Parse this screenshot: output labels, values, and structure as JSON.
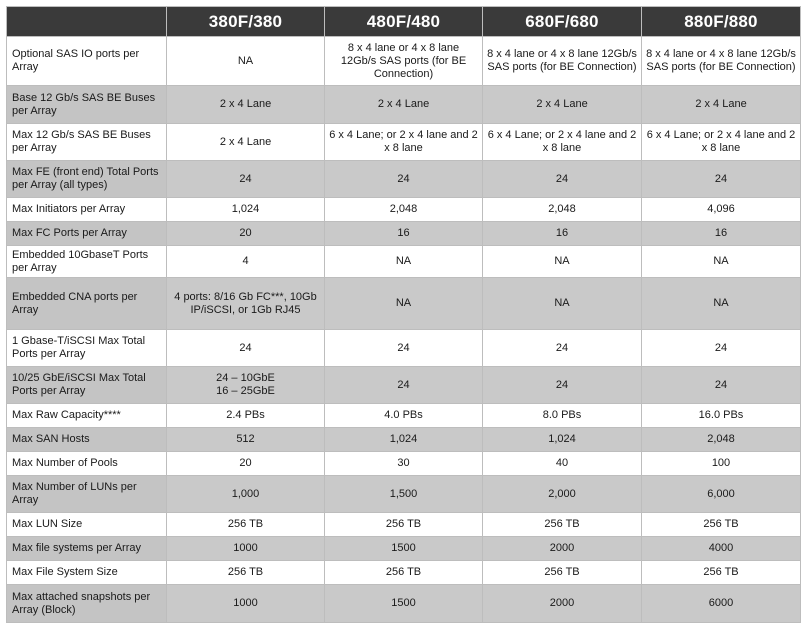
{
  "header": {
    "models": [
      "380F/380",
      "480F/480",
      "680F/680",
      "880F/880"
    ]
  },
  "rows": [
    {
      "label": "Optional SAS IO ports per Array",
      "values": [
        "NA",
        "8 x 4 lane or 4 x 8 lane 12Gb/s SAS ports (for BE Connection)",
        "8 x 4 lane or 4 x 8 lane 12Gb/s SAS ports (for BE Connection)",
        "8 x 4 lane or 4 x 8 lane 12Gb/s SAS ports (for BE Connection)"
      ]
    },
    {
      "label": "Base 12 Gb/s SAS BE Buses per Array",
      "values": [
        "2 x 4 Lane",
        "2 x 4 Lane",
        "2 x 4 Lane",
        "2 x 4 Lane"
      ]
    },
    {
      "label": "Max 12 Gb/s SAS BE Buses per Array",
      "values": [
        "2 x 4 Lane",
        "6 x 4 Lane; or 2 x 4 lane and 2 x 8 lane",
        "6 x 4 Lane; or 2 x 4 lane and 2 x 8 lane",
        "6 x 4 Lane; or 2 x 4 lane and 2 x 8 lane"
      ]
    },
    {
      "label": "Max FE (front end) Total Ports per Array (all types)",
      "values": [
        "24",
        "24",
        "24",
        "24"
      ]
    },
    {
      "label": "Max Initiators per Array",
      "values": [
        "1,024",
        "2,048",
        "2,048",
        "4,096"
      ]
    },
    {
      "label": "Max FC Ports per Array",
      "values": [
        "20",
        "16",
        "16",
        "16"
      ]
    },
    {
      "label": "Embedded 10GbaseT Ports per Array",
      "values": [
        "4",
        "NA",
        "NA",
        "NA"
      ]
    },
    {
      "label": "Embedded CNA ports per Array",
      "values": [
        "4 ports: 8/16 Gb FC***, 10Gb IP/iSCSI, or 1Gb RJ45",
        "NA",
        "NA",
        "NA"
      ]
    },
    {
      "label": "1 Gbase-T/iSCSI Max Total Ports per Array",
      "values": [
        "24",
        "24",
        "24",
        "24"
      ]
    },
    {
      "label": "10/25 GbE/iSCSI Max Total Ports per Array",
      "values": [
        "24 – 10GbE\n16 – 25GbE",
        "24",
        "24",
        "24"
      ]
    },
    {
      "label": "Max Raw Capacity****",
      "values": [
        "2.4 PBs",
        "4.0 PBs",
        "8.0 PBs",
        "16.0 PBs"
      ]
    },
    {
      "label": "Max SAN Hosts",
      "values": [
        "512",
        "1,024",
        "1,024",
        "2,048"
      ]
    },
    {
      "label": "Max Number of Pools",
      "values": [
        "20",
        "30",
        "40",
        "100"
      ]
    },
    {
      "label": "Max Number of LUNs per Array",
      "values": [
        "1,000",
        "1,500",
        "2,000",
        "6,000"
      ]
    },
    {
      "label": "Max LUN Size",
      "values": [
        "256 TB",
        "256 TB",
        "256 TB",
        "256 TB"
      ]
    },
    {
      "label": "Max file systems per Array",
      "values": [
        "1000",
        "1500",
        "2000",
        "4000"
      ]
    },
    {
      "label": "Max File System Size",
      "values": [
        "256 TB",
        "256 TB",
        "256 TB",
        "256 TB"
      ]
    },
    {
      "label": "Max attached snapshots per Array (Block)",
      "values": [
        "1000",
        "1500",
        "2000",
        "6000"
      ]
    }
  ]
}
